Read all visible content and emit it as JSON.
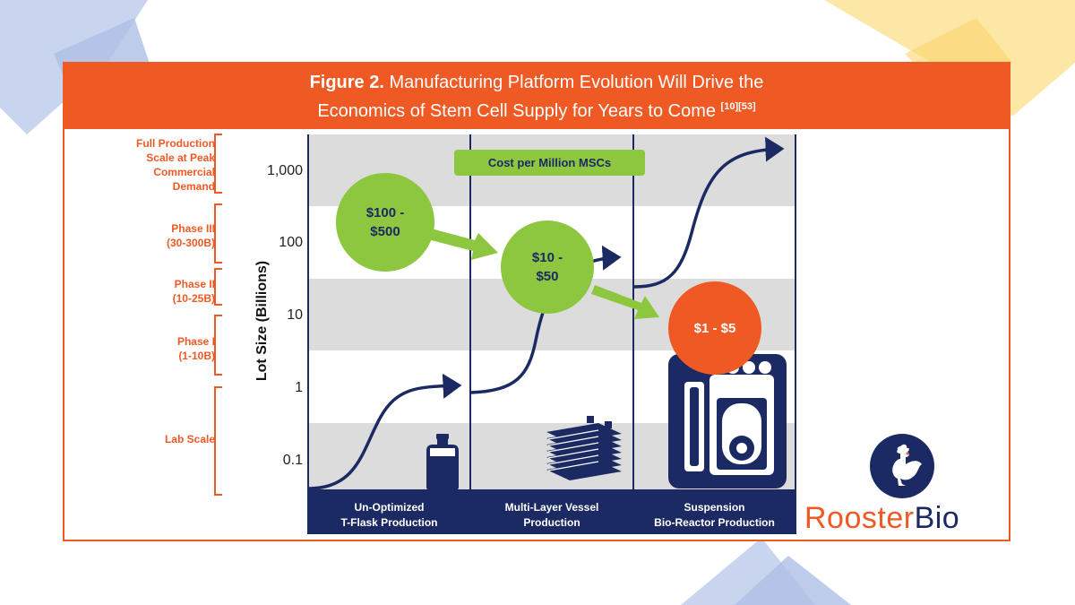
{
  "figure": {
    "label": "Figure 2.",
    "title_line1": "Manufacturing Platform Evolution Will Drive the",
    "title_line2": "Economics of Stem Cell Supply for Years to Come",
    "refs": "[10][53]"
  },
  "axis": {
    "y_title": "Lot Size (Billions)",
    "y_ticks": [
      "1,000",
      "100",
      "10",
      "1",
      "0.1"
    ],
    "y_scale": "log"
  },
  "phases": [
    {
      "id": "full",
      "lines": [
        "Full Production",
        "Scale at Peak",
        "Commercial",
        "Demand"
      ]
    },
    {
      "id": "p3",
      "lines": [
        "Phase III",
        "(30-300B)"
      ]
    },
    {
      "id": "p2",
      "lines": [
        "Phase II",
        "(10-25B)"
      ]
    },
    {
      "id": "p1",
      "lines": [
        "Phase I",
        "(1-10B)"
      ]
    },
    {
      "id": "lab",
      "lines": [
        "Lab Scale"
      ]
    }
  ],
  "cost_title": "Cost per Million MSCs",
  "costs": [
    {
      "line1": "$100 -",
      "line2": "$500",
      "color": "#8dc63f"
    },
    {
      "line1": "$10 -",
      "line2": "$50",
      "color": "#8dc63f"
    },
    {
      "line1": "$1 - $5",
      "line2": "",
      "color": "#ef5a24"
    }
  ],
  "platforms": [
    {
      "line1": "Un-Optimized",
      "line2": "T-Flask Production",
      "icon": "t-flask-icon"
    },
    {
      "line1": "Multi-Layer Vessel",
      "line2": "Production",
      "icon": "multi-layer-vessel-icon"
    },
    {
      "line1": "Suspension",
      "line2": "Bio-Reactor Production",
      "icon": "bioreactor-icon"
    }
  ],
  "logo": {
    "part1": "Rooster",
    "part2": "Bio",
    "icon": "rooster-icon"
  },
  "colors": {
    "orange": "#ef5a24",
    "navy": "#1c2a63",
    "green": "#8dc63f",
    "band_gray": "#dcdcdc"
  }
}
